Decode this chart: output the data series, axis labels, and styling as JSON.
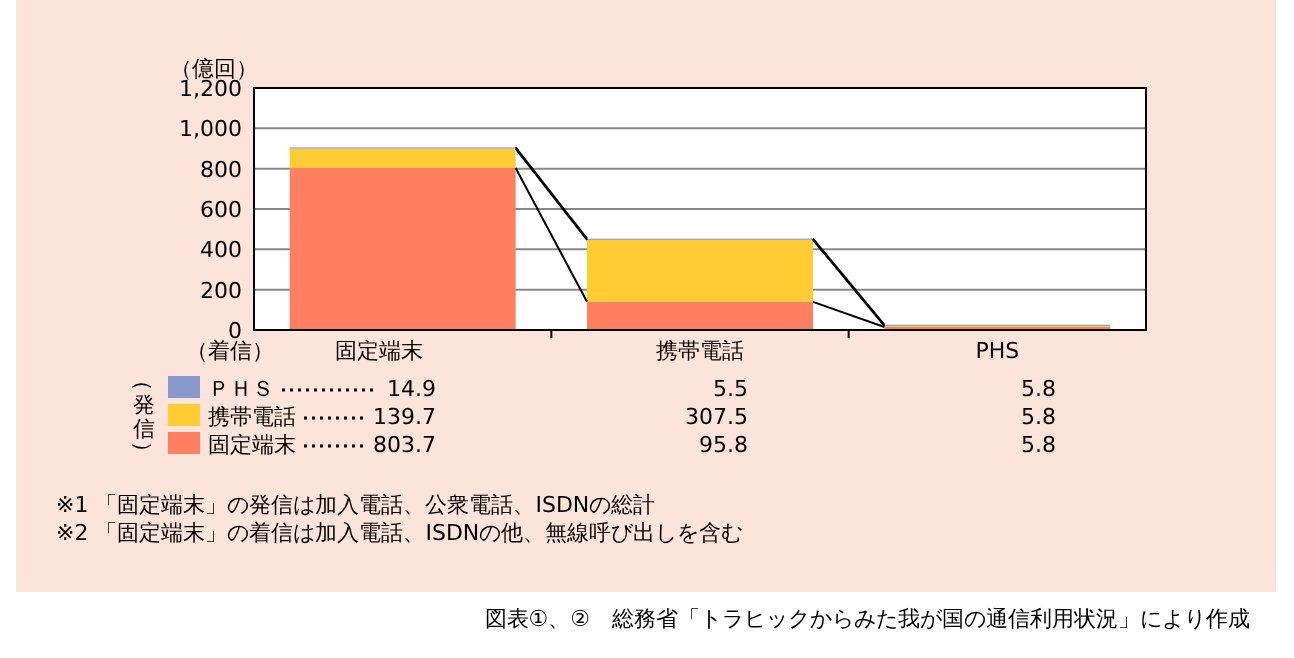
{
  "chart_data": {
    "type": "bar",
    "stacked": true,
    "ylabel": "（億回）",
    "xlabel": "（着信）",
    "legend_title": "（発信）",
    "categories": [
      "固定端末",
      "携帯電話",
      "PHS"
    ],
    "series": [
      {
        "name": "固定端末",
        "color": "#ff8060",
        "values": [
          803.7,
          139.7,
          14.9
        ]
      },
      {
        "name": "携帯電話",
        "color": "#ffcc33",
        "values": [
          95.8,
          307.5,
          5.5
        ]
      },
      {
        "name": "ＰＨＳ",
        "color": "#8899cc",
        "values": [
          5.8,
          5.8,
          5.8
        ]
      }
    ],
    "ylim": [
      0,
      1200
    ],
    "yticks": [
      {
        "value": 0,
        "label": "0"
      },
      {
        "value": 200,
        "label": "200"
      },
      {
        "value": 400,
        "label": "400"
      },
      {
        "value": 600,
        "label": "600"
      },
      {
        "value": 800,
        "label": "800"
      },
      {
        "value": 1000,
        "label": "1,000"
      },
      {
        "value": 1200,
        "label": "1,200"
      }
    ],
    "grid": "y",
    "legend": "bottom",
    "annotations": [
      "14.9",
      "5.5",
      "5.8",
      "139.7",
      "307.5",
      "5.8",
      "803.7",
      "95.8",
      "5.8",
      "※1 「固定端末」の発信は加入電話、公衆電話、ISDNの総計",
      "※2 「固定端末」の着信は加入電話、ISDNの他、無線呼び出しを含む",
      "図表①、②　総務省「トラヒックからみた我が国の通信利用状況」により作成"
    ]
  }
}
